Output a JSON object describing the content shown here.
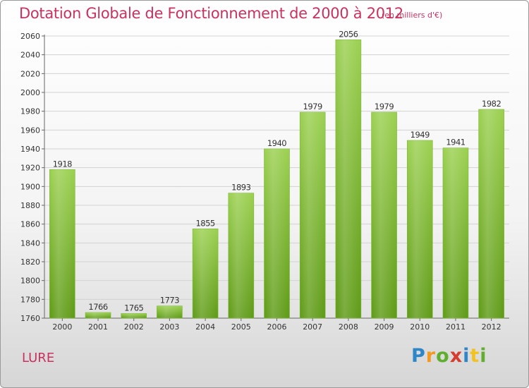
{
  "title": "Dotation Globale de Fonctionnement de 2000 à 2012",
  "subtitle": "(en milliers d'€)",
  "town": "LURE",
  "logo": {
    "letters": [
      "P",
      "r",
      "o",
      "x",
      "i",
      "t",
      "i"
    ],
    "colors": [
      "#2e86c8",
      "#f29a1f",
      "#5fae2e",
      "#d63b2f",
      "#2e86c8",
      "#f2c21f",
      "#5fae2e"
    ]
  },
  "colors": {
    "accent": "#c8325f",
    "bar_top": "#9bd050",
    "bar_bottom": "#5e9a16"
  },
  "chart_data": {
    "type": "bar",
    "categories": [
      "2000",
      "2001",
      "2002",
      "2003",
      "2004",
      "2005",
      "2006",
      "2007",
      "2008",
      "2009",
      "2010",
      "2011",
      "2012"
    ],
    "values": [
      1918,
      1766,
      1765,
      1773,
      1855,
      1893,
      1940,
      1979,
      2056,
      1979,
      1949,
      1941,
      1982
    ],
    "data_labels": [
      "1918",
      "1766",
      "1765",
      "1773",
      "1855",
      "1893",
      "1940",
      "1979",
      "2056",
      "1979",
      "1949",
      "1941",
      "1982"
    ],
    "y_ticks": [
      1760,
      1780,
      1800,
      1820,
      1840,
      1860,
      1880,
      1900,
      1920,
      1940,
      1960,
      1980,
      2000,
      2020,
      2040,
      2060
    ],
    "ylim": [
      1760,
      2060
    ],
    "grid": true,
    "legend": "none"
  }
}
